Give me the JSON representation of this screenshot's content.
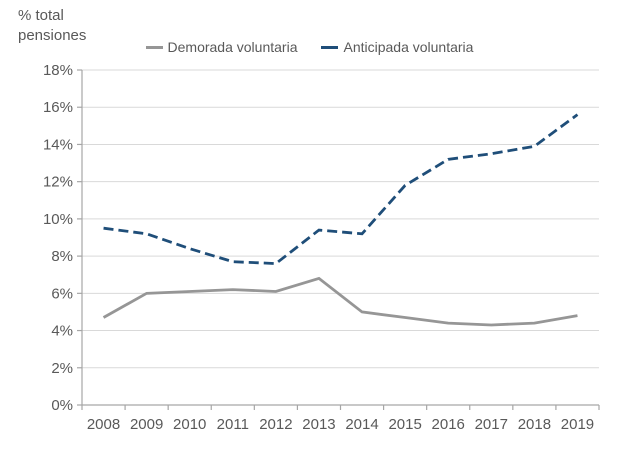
{
  "chart_data": {
    "type": "line",
    "title": "",
    "ylabel": "% total pensiones",
    "xlabel": "",
    "categories": [
      "2008",
      "2009",
      "2010",
      "2011",
      "2012",
      "2013",
      "2014",
      "2015",
      "2016",
      "2017",
      "2018",
      "2019"
    ],
    "series": [
      {
        "name": "Demorada voluntaria",
        "style": "solid",
        "color": "#969696",
        "values": [
          4.7,
          6.0,
          6.1,
          6.2,
          6.1,
          6.8,
          5.0,
          4.7,
          4.4,
          4.3,
          4.4,
          4.8
        ]
      },
      {
        "name": "Anticipada voluntaria",
        "style": "dashed",
        "color": "#1F4E79",
        "values": [
          9.5,
          9.2,
          8.4,
          7.7,
          7.6,
          9.4,
          9.2,
          11.8,
          13.2,
          13.5,
          13.9,
          15.6
        ]
      }
    ],
    "ylim": [
      0,
      18
    ],
    "ytick_step": 2,
    "ytick_suffix": "%",
    "grid": true,
    "legend_position": "top"
  },
  "colors": {
    "gridline": "#D9D9D9",
    "axis": "#A6A6A6",
    "tick_text": "#595959",
    "label_text": "#595959",
    "background": "#FFFFFF"
  }
}
